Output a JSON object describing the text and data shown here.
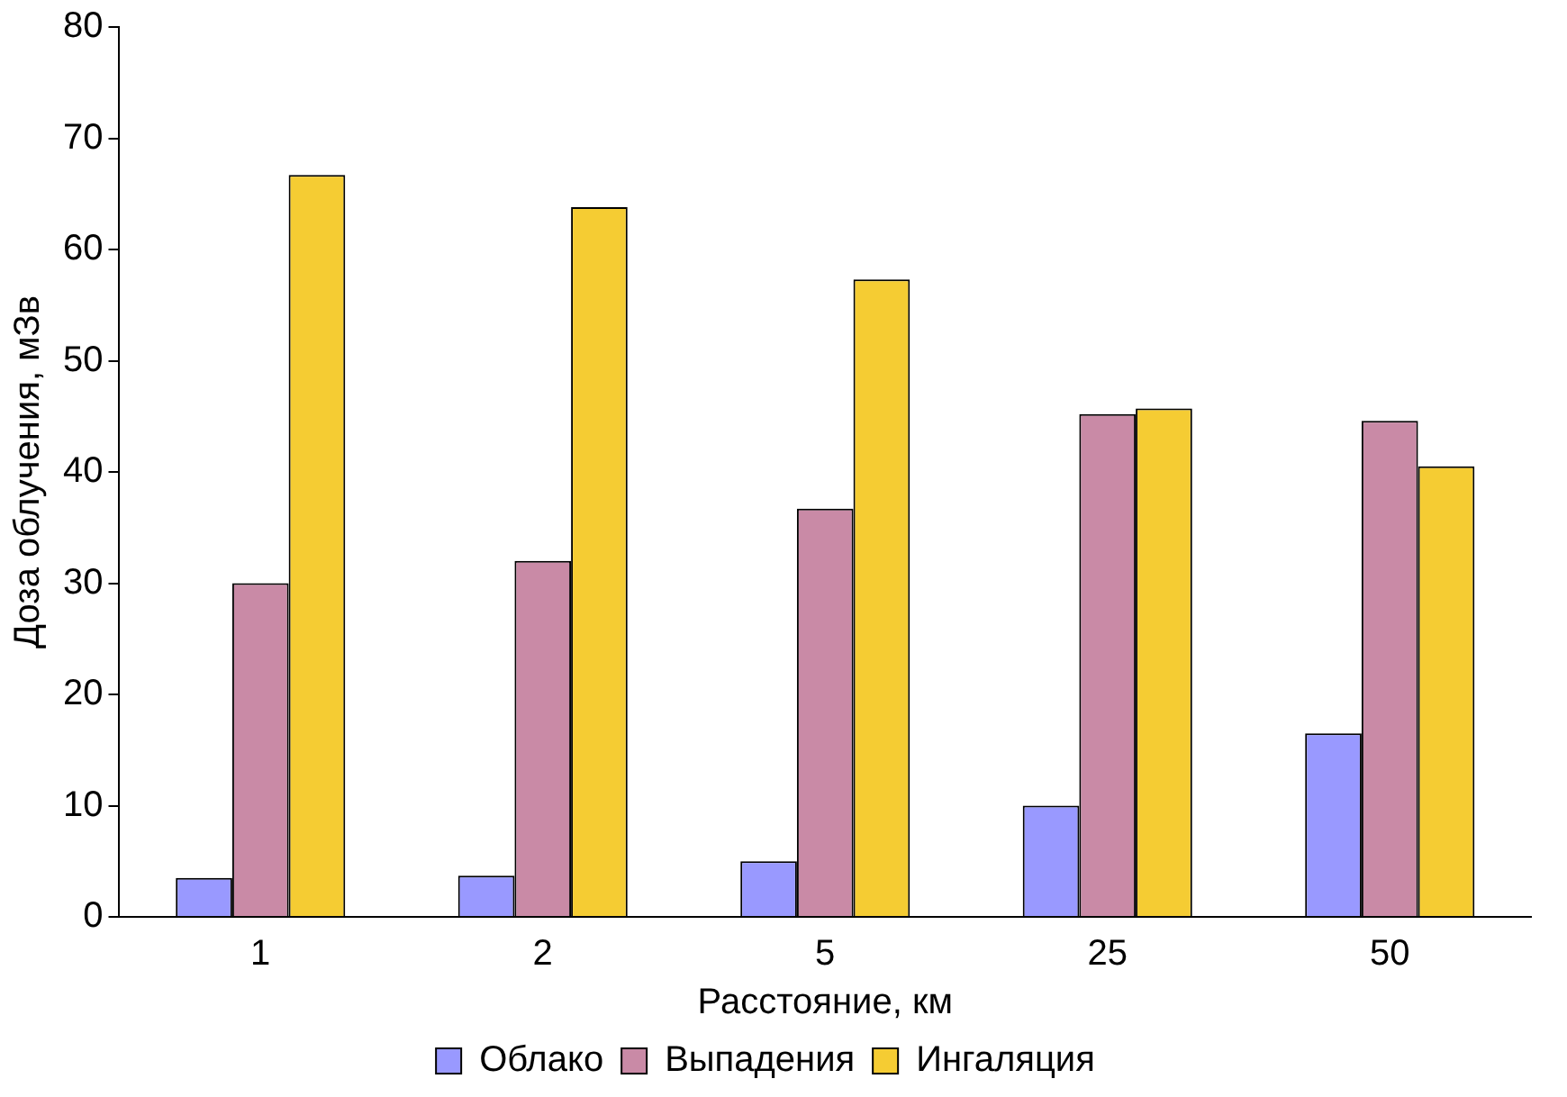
{
  "chart_data": {
    "type": "bar",
    "xlabel": "Расстояние, км",
    "ylabel": "Доза облучения, мЗв",
    "categories": [
      "1",
      "2",
      "5",
      "25",
      "50"
    ],
    "series": [
      {
        "name": "Облако",
        "color": "#9999ff",
        "values": [
          3.5,
          3.7,
          5,
          10,
          16.5
        ]
      },
      {
        "name": "Выпадения",
        "color": "#c98aa6",
        "values": [
          30,
          32,
          36.7,
          45.2,
          44.6
        ]
      },
      {
        "name": "Ингаляция",
        "color": "#f5cc33",
        "values": [
          66.7,
          63.8,
          57.3,
          45.7,
          40.5
        ]
      }
    ],
    "ylim": [
      0,
      80
    ],
    "yticks": [
      0,
      10,
      20,
      30,
      40,
      50,
      60,
      70,
      80
    ],
    "grid": false,
    "legend": "bottom"
  }
}
